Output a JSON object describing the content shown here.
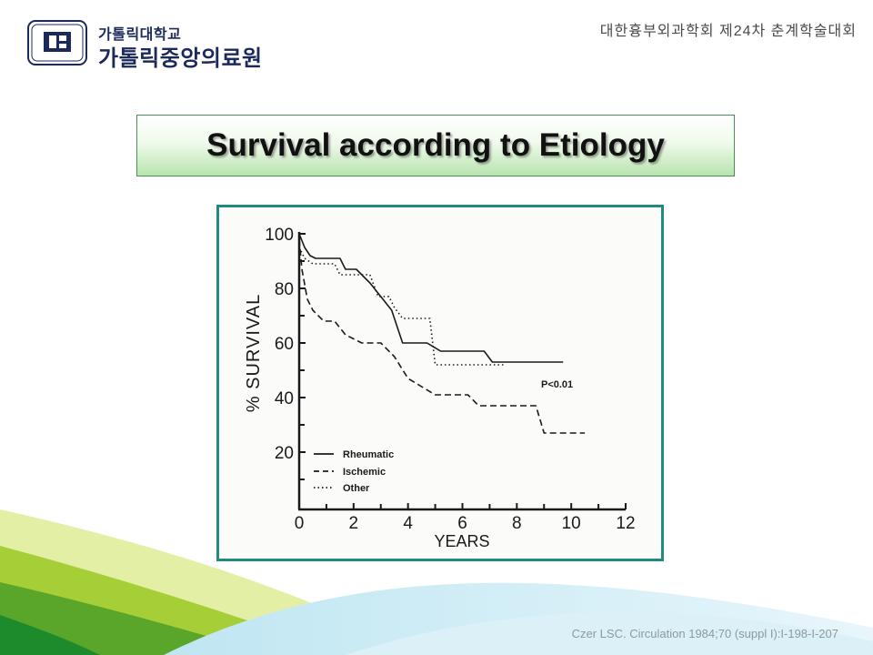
{
  "header": {
    "institution_small": "가톨릭대학교",
    "institution_large": "가톨릭중앙의료원",
    "conference": "대한흉부외과학회 제24차 춘계학술대회"
  },
  "slide": {
    "title": "Survival according to Etiology",
    "citation": "Czer LSC. Circulation 1984;70 (suppl I):I-198-I-207"
  },
  "chart_data": {
    "type": "line",
    "xlabel": "YEARS",
    "ylabel": "% SURVIVAL",
    "xlim": [
      0,
      12
    ],
    "ylim": [
      0,
      100
    ],
    "xticks": [
      "0",
      "2",
      "4",
      "6",
      "8",
      "10",
      "12"
    ],
    "yticks": [
      "20",
      "40",
      "60",
      "80",
      "100"
    ],
    "annotation": "P<0.01",
    "legend_position": "bottom-left",
    "grid": false,
    "series": [
      {
        "name": "Rheumatic",
        "style": "solid",
        "x": [
          0,
          0.2,
          0.4,
          0.6,
          1.5,
          1.7,
          2.1,
          2.4,
          2.6,
          3.4,
          3.8,
          4.7,
          5.2,
          6.0,
          6.8,
          7.1,
          9.7
        ],
        "y": [
          100,
          95,
          92,
          91,
          91,
          87,
          87,
          84,
          82,
          72,
          60,
          60,
          57,
          57,
          57,
          53,
          53
        ]
      },
      {
        "name": "Ischemic",
        "style": "dashed",
        "x": [
          0,
          0.1,
          0.3,
          0.5,
          0.9,
          1.3,
          1.7,
          2.3,
          3.0,
          3.5,
          4.0,
          4.5,
          5.0,
          6.2,
          6.6,
          8.7,
          9.0,
          10.5
        ],
        "y": [
          98,
          87,
          76,
          72,
          68,
          68,
          63,
          60,
          60,
          55,
          47,
          44,
          41,
          41,
          37,
          37,
          27,
          27
        ]
      },
      {
        "name": "Other",
        "style": "dotted",
        "x": [
          0,
          0.2,
          0.5,
          1.3,
          1.5,
          2.6,
          2.9,
          3.3,
          3.5,
          3.8,
          4.2,
          4.8,
          5.0,
          6.0,
          7.5
        ],
        "y": [
          95,
          91,
          89,
          89,
          85,
          85,
          77,
          77,
          73,
          69,
          69,
          69,
          52,
          52,
          52
        ]
      }
    ]
  }
}
